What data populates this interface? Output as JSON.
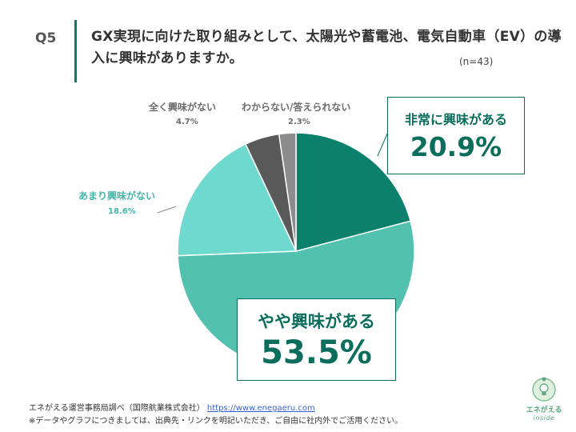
{
  "question": {
    "number": "Q5",
    "text": "GX実現に向けた取り組みとして、太陽光や蓄電池、電気自動車（EV）の導入に興味がありますか。",
    "sample": "(n=43)"
  },
  "chart_data": {
    "type": "pie",
    "unit": "%",
    "slices": [
      {
        "name": "非常に興味がある",
        "value": 20.9,
        "label": "20.9%",
        "color": "#0b806c"
      },
      {
        "name": "やや興味がある",
        "value": 53.5,
        "label": "53.5%",
        "color": "#52c1b0"
      },
      {
        "name": "あまり興味がない",
        "value": 18.6,
        "label": "18.6%",
        "color": "#6fd9cf"
      },
      {
        "name": "全く興味がない",
        "value": 4.7,
        "label": "4.7%",
        "color": "#595959"
      },
      {
        "name": "わからない/答えられない",
        "value": 2.3,
        "label": "2.3%",
        "color": "#8c8c8c"
      }
    ]
  },
  "footer": {
    "source": "エネがえる運営事務局調べ（国際航業株式会社）",
    "url": "https://www.enegaeru.com",
    "note": "※データやグラフにつきましては、出典先・リンクを明記いただき、ご自由に社内外でご活用ください。"
  },
  "logo": {
    "text": "エネがえる",
    "sub": "inside"
  }
}
